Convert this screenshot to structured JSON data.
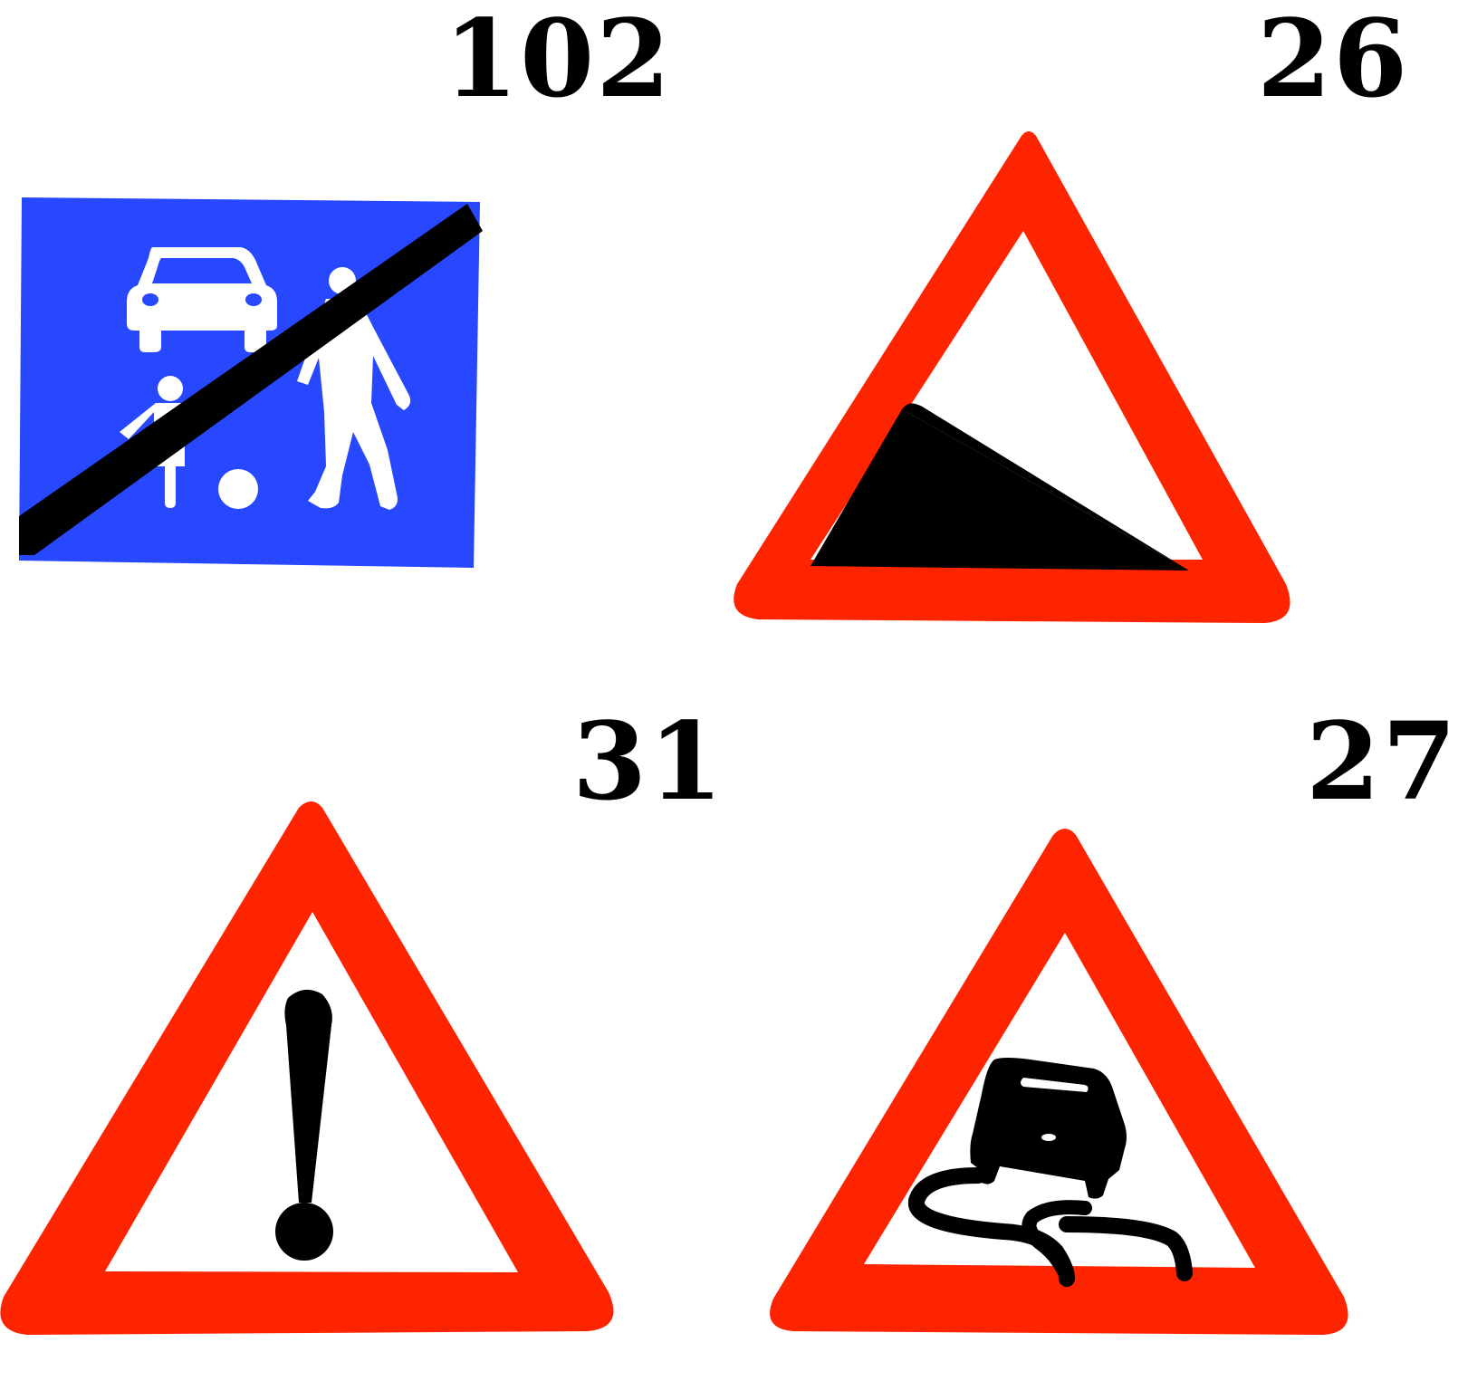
{
  "colors": {
    "background": "#ffffff",
    "blue": "#2748ff",
    "red": "#ff2400",
    "black": "#000000",
    "white": "#ffffff"
  },
  "signs": [
    {
      "number": "102",
      "icon": "end-of-living-street-sign-icon"
    },
    {
      "number": "26",
      "icon": "steep-descent-warning-sign-icon"
    },
    {
      "number": "31",
      "icon": "other-danger-warning-sign-icon"
    },
    {
      "number": "27",
      "icon": "slippery-road-warning-sign-icon"
    }
  ]
}
